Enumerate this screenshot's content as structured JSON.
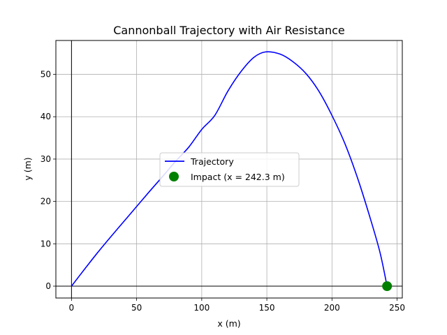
{
  "chart_data": {
    "type": "line",
    "title": "Cannonball Trajectory with Air Resistance",
    "xlabel": "x (m)",
    "ylabel": "y (m)",
    "xlim": [
      -12,
      254
    ],
    "ylim": [
      -2.8,
      58
    ],
    "x_ticks": [
      0,
      50,
      100,
      150,
      200,
      250
    ],
    "y_ticks": [
      0,
      10,
      20,
      30,
      40,
      50
    ],
    "grid": true,
    "legend_position": "center",
    "series": [
      {
        "name": "Trajectory",
        "kind": "line",
        "color": "#0000ff",
        "points": [
          [
            0,
            0
          ],
          [
            10,
            4.0
          ],
          [
            20,
            7.9
          ],
          [
            30,
            11.6
          ],
          [
            40,
            15.2
          ],
          [
            50,
            18.8
          ],
          [
            60,
            22.4
          ],
          [
            70,
            25.9
          ],
          [
            80,
            29.5
          ],
          [
            90,
            32.8
          ],
          [
            100,
            37.0
          ],
          [
            110,
            40.3
          ],
          [
            120,
            46.0
          ],
          [
            130,
            50.6
          ],
          [
            140,
            54.0
          ],
          [
            149,
            55.3
          ],
          [
            160,
            54.8
          ],
          [
            170,
            53.0
          ],
          [
            180,
            50.2
          ],
          [
            190,
            46.0
          ],
          [
            200,
            40.3
          ],
          [
            210,
            33.6
          ],
          [
            220,
            25.2
          ],
          [
            230,
            15.4
          ],
          [
            237,
            7.8
          ],
          [
            242.3,
            0
          ]
        ]
      },
      {
        "name": "Impact (x = 242.3 m)",
        "kind": "scatter",
        "color": "#008000",
        "points": [
          [
            242.3,
            0
          ]
        ]
      }
    ]
  }
}
